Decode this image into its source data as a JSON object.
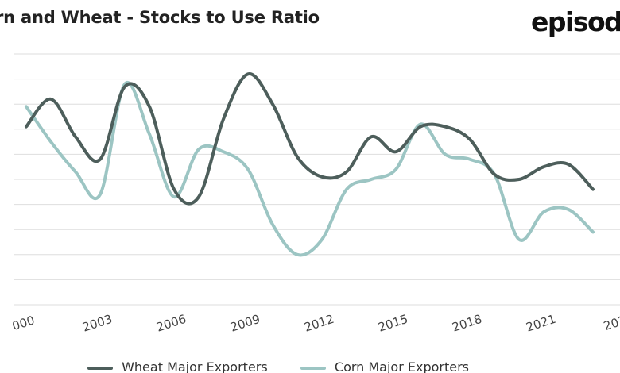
{
  "header": {
    "title": "rn and Wheat - Stocks to Use Ratio",
    "brand": "episod"
  },
  "colors": {
    "wheat": "#4d5e5b",
    "corn": "#9cc5c3",
    "grid": "#dedede",
    "axis_text": "#444444"
  },
  "chart_data": {
    "type": "line",
    "xlabel": "",
    "ylabel": "",
    "x_ticks": [
      "000",
      "2003",
      "2006",
      "2009",
      "2012",
      "2015",
      "2018",
      "2021",
      "202"
    ],
    "grid": true,
    "legend_position": "bottom",
    "series": [
      {
        "name": "Wheat Major Exporters",
        "color": "#4d5e5b",
        "x": [
          2000,
          2001,
          2002,
          2003,
          2004,
          2005,
          2006,
          2007,
          2008,
          2009,
          2010,
          2011,
          2012,
          2013,
          2014,
          2015,
          2016,
          2017,
          2018,
          2019,
          2020,
          2021,
          2022,
          2023
        ],
        "y": [
          7.1,
          8.2,
          6.7,
          5.8,
          8.7,
          7.9,
          4.6,
          4.3,
          7.4,
          9.2,
          8.0,
          5.9,
          5.1,
          5.3,
          6.7,
          6.1,
          7.1,
          7.1,
          6.6,
          5.2,
          5.0,
          5.5,
          5.6,
          4.6
        ],
        "values_are_estimates": true
      },
      {
        "name": "Corn Major Exporters",
        "color": "#9cc5c3",
        "x": [
          2000,
          2001,
          2002,
          2003,
          2004,
          2005,
          2006,
          2007,
          2008,
          2009,
          2010,
          2011,
          2012,
          2013,
          2014,
          2015,
          2016,
          2017,
          2018,
          2019,
          2020,
          2021,
          2022,
          2023
        ],
        "y": [
          7.9,
          6.5,
          5.3,
          4.4,
          8.8,
          6.8,
          4.3,
          6.2,
          6.1,
          5.4,
          3.2,
          2.0,
          2.6,
          4.6,
          5.0,
          5.4,
          7.2,
          6.0,
          5.8,
          5.2,
          2.6,
          3.7,
          3.8,
          2.9
        ],
        "values_are_estimates": true
      }
    ]
  }
}
